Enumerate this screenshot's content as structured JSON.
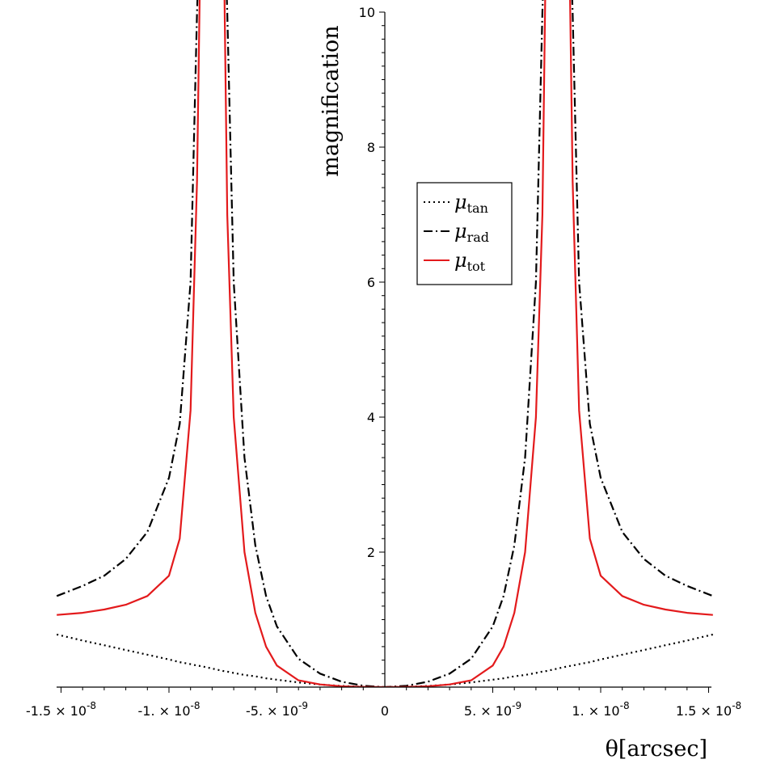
{
  "chart_data": {
    "type": "line",
    "title": "",
    "xlabel": "θ[arcsec]",
    "ylabel": "magnification",
    "xlim": [
      -1.52e-08,
      1.52e-08
    ],
    "ylim": [
      0,
      10
    ],
    "grid": false,
    "legend_position": "upper-middle-right",
    "x_ticks": [
      {
        "value": -1.5e-08,
        "mantissa": "-1.5",
        "exponent": "-8"
      },
      {
        "value": -1e-08,
        "mantissa": "-1.",
        "exponent": "-8"
      },
      {
        "value": -5e-09,
        "mantissa": "-5.",
        "exponent": "-9"
      },
      {
        "value": 0,
        "mantissa": "0",
        "exponent": ""
      },
      {
        "value": 5e-09,
        "mantissa": "5.",
        "exponent": "-9"
      },
      {
        "value": 1e-08,
        "mantissa": "1.",
        "exponent": "-8"
      },
      {
        "value": 1.5e-08,
        "mantissa": "1.5",
        "exponent": "-8"
      }
    ],
    "y_ticks": [
      {
        "value": 2,
        "label": "2"
      },
      {
        "value": 4,
        "label": "4"
      },
      {
        "value": 6,
        "label": "6"
      },
      {
        "value": 8,
        "label": "8"
      },
      {
        "value": 10,
        "label": "10"
      }
    ],
    "x": [
      0,
      1e-09,
      2e-09,
      3e-09,
      4e-09,
      5e-09,
      5.5e-09,
      6e-09,
      6.5e-09,
      7e-09,
      7.3e-09,
      7.5e-09,
      8.5e-09,
      8.7e-09,
      9e-09,
      9.5e-09,
      1e-08,
      1.1e-08,
      1.2e-08,
      1.3e-08,
      1.4e-08,
      1.52e-08
    ],
    "x_mirrored": true,
    "series": [
      {
        "name": "tan",
        "color": "#000000",
        "dash": "dotted",
        "y": [
          0,
          0.004,
          0.017,
          0.04,
          0.07,
          0.11,
          0.13,
          0.16,
          0.18,
          0.21,
          0.23,
          0.24,
          0.31,
          0.32,
          0.34,
          0.37,
          0.41,
          0.48,
          0.55,
          0.62,
          0.69,
          0.78
        ]
      },
      {
        "name": "rad",
        "color": "#000000",
        "dash": "dash-dot",
        "y": [
          0,
          0.02,
          0.08,
          0.2,
          0.42,
          0.9,
          1.35,
          2.1,
          3.4,
          6.0,
          10.0,
          12.0,
          12.0,
          10.0,
          6.0,
          3.9,
          3.1,
          2.3,
          1.9,
          1.65,
          1.5,
          1.35
        ]
      },
      {
        "name": "tot",
        "color": "#e31a1c",
        "dash": "solid",
        "y": [
          0,
          0.003,
          0.012,
          0.04,
          0.1,
          0.32,
          0.6,
          1.1,
          2.0,
          4.0,
          7.0,
          12.0,
          12.0,
          7.5,
          4.1,
          2.2,
          1.65,
          1.35,
          1.22,
          1.15,
          1.1,
          1.07
        ]
      }
    ]
  }
}
